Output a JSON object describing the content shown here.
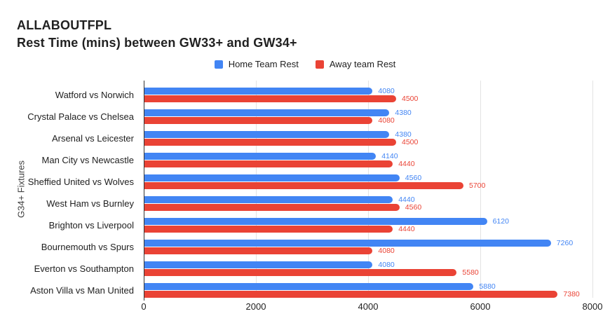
{
  "title": {
    "line1": "ALLABOUTFPL",
    "line2": "Rest Time (mins) between GW33+ and GW34+"
  },
  "axes": {
    "y_title": "G34+ Fixtures"
  },
  "colors": {
    "home_blue": "#4285F4",
    "away_red": "#EA4335",
    "gridline": "#e3e3e3",
    "axis_line": "#333333",
    "text_dark": "#212121"
  },
  "chart_data": {
    "type": "bar",
    "orientation": "horizontal",
    "title": "ALLABOUTFPL — Rest Time (mins) between GW33+ and GW34+",
    "xlabel": "",
    "ylabel": "G34+ Fixtures",
    "xlim": [
      0,
      8000
    ],
    "x_ticks": [
      0,
      2000,
      4000,
      6000,
      8000
    ],
    "grid": true,
    "legend_position": "top-center",
    "data_labels": true,
    "categories": [
      "Watford vs Norwich",
      "Crystal Palace vs Chelsea",
      "Arsenal vs Leicester",
      "Man City vs Newcastle",
      "Sheffied United vs Wolves",
      "West Ham vs Burnley",
      "Brighton vs Liverpool",
      "Bournemouth vs Spurs",
      "Everton vs Southampton",
      "Aston Villa vs Man United"
    ],
    "series": [
      {
        "name": "Home Team Rest",
        "color": "#4285F4",
        "values": [
          4080,
          4380,
          4380,
          4140,
          4560,
          4440,
          6120,
          7260,
          4080,
          5880
        ]
      },
      {
        "name": "Away team Rest",
        "color": "#EA4335",
        "values": [
          4500,
          4080,
          4500,
          4440,
          5700,
          4560,
          4440,
          4080,
          5580,
          7380
        ]
      }
    ]
  }
}
